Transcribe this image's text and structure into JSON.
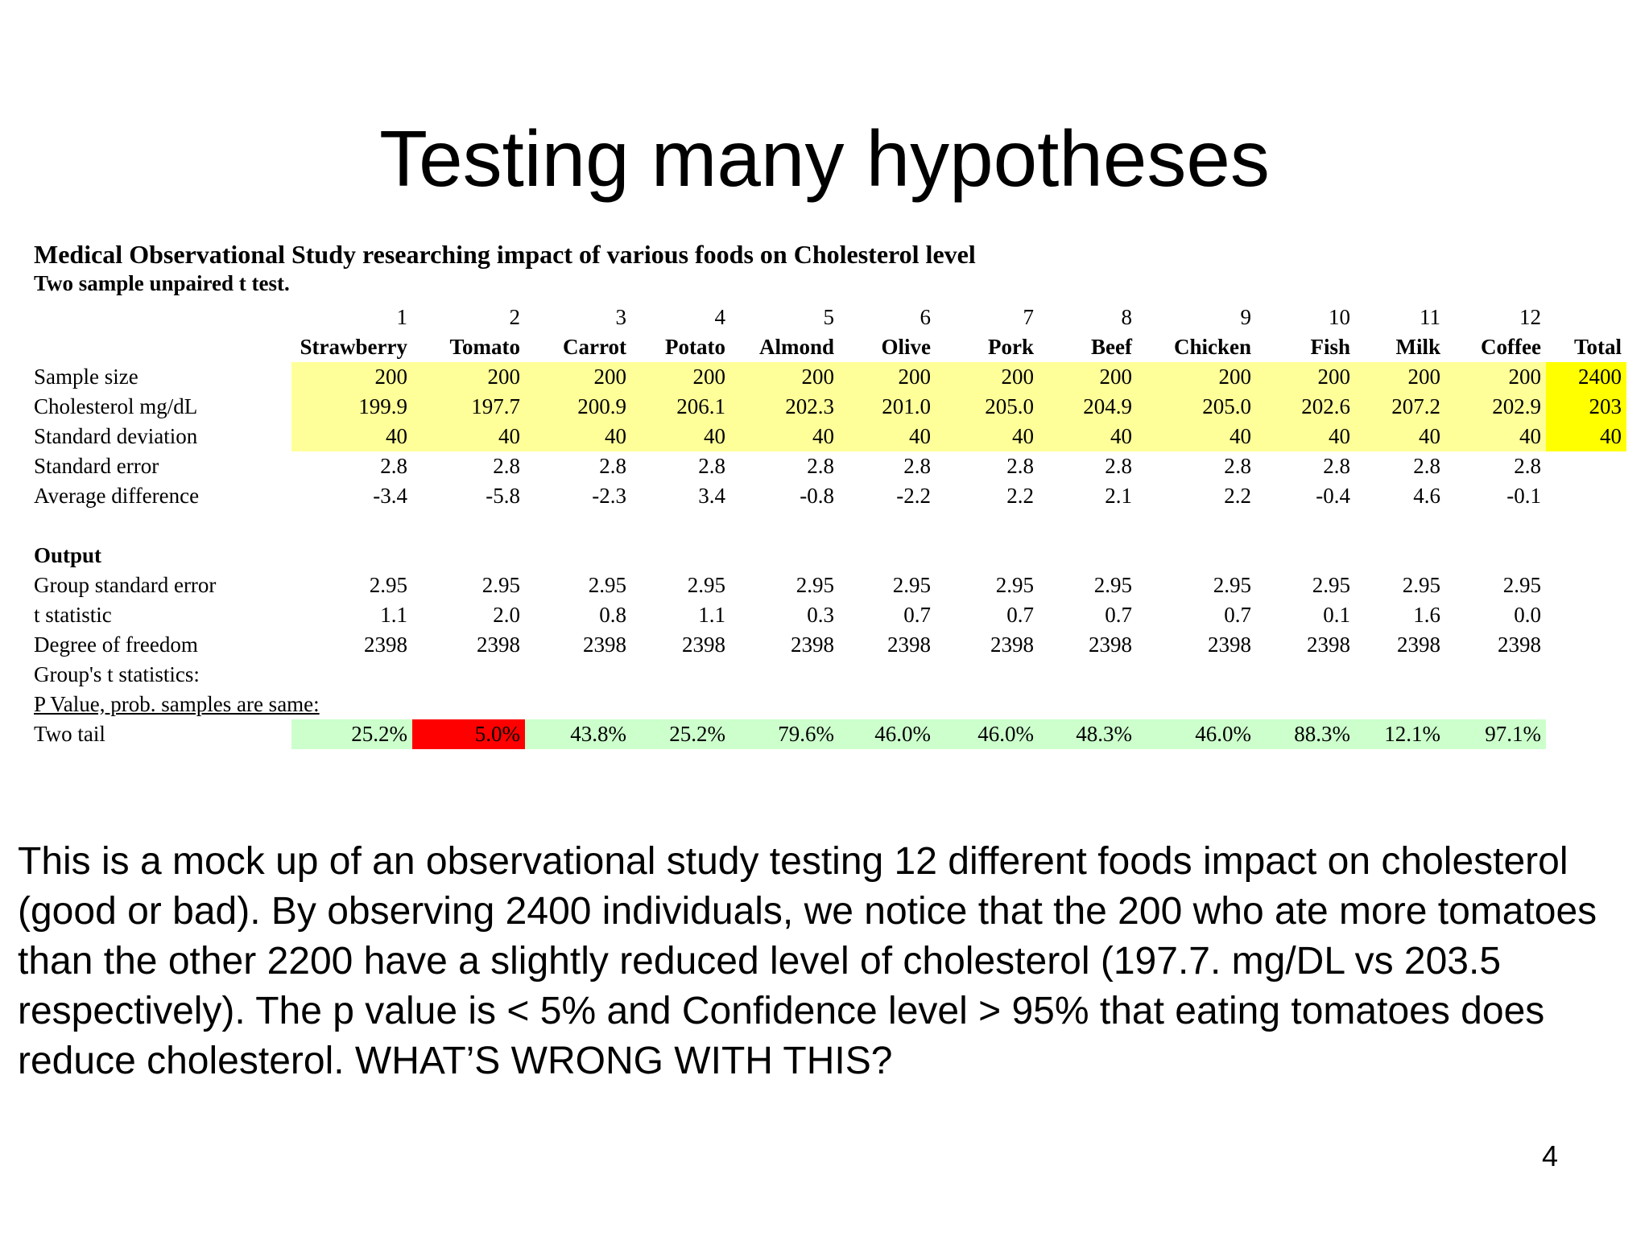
{
  "slide": {
    "title": "Testing many hypotheses",
    "page_number": "4",
    "description": "This is a mock up of an observational study testing 12 different foods impact on cholesterol (good or bad).  By observing 2400 individuals, we notice that the 200 who ate more tomatoes than the other 2200 have a slightly reduced level of cholesterol (197.7. mg/DL vs 203.5 respectively).  The p value is < 5% and Confidence level > 95% that eating tomatoes does reduce cholesterol.  WHAT’S WRONG WITH THIS?"
  },
  "study": {
    "title": "Medical Observational Study researching impact of various foods on Cholesterol level",
    "subtitle": "Two sample unpaired t test.",
    "group_numbers": [
      "1",
      "2",
      "3",
      "4",
      "5",
      "6",
      "7",
      "8",
      "9",
      "10",
      "11",
      "12"
    ],
    "foods": [
      "Strawberry",
      "Tomato",
      "Carrot",
      "Potato",
      "Almond",
      "Olive",
      "Pork",
      "Beef",
      "Chicken",
      "Fish",
      "Milk",
      "Coffee"
    ],
    "total_label": "Total",
    "rows": [
      {
        "label": "Sample size",
        "values": [
          "200",
          "200",
          "200",
          "200",
          "200",
          "200",
          "200",
          "200",
          "200",
          "200",
          "200",
          "200"
        ],
        "total": "2400"
      },
      {
        "label": "Cholesterol mg/dL",
        "values": [
          "199.9",
          "197.7",
          "200.9",
          "206.1",
          "202.3",
          "201.0",
          "205.0",
          "204.9",
          "205.0",
          "202.6",
          "207.2",
          "202.9"
        ],
        "total": "203"
      },
      {
        "label": "Standard deviation",
        "values": [
          "40",
          "40",
          "40",
          "40",
          "40",
          "40",
          "40",
          "40",
          "40",
          "40",
          "40",
          "40"
        ],
        "total": "40"
      },
      {
        "label": "Standard error",
        "values": [
          "2.8",
          "2.8",
          "2.8",
          "2.8",
          "2.8",
          "2.8",
          "2.8",
          "2.8",
          "2.8",
          "2.8",
          "2.8",
          "2.8"
        ]
      },
      {
        "label": "Average difference",
        "values": [
          "-3.4",
          "-5.8",
          "-2.3",
          "3.4",
          "-0.8",
          "-2.2",
          "2.2",
          "2.1",
          "2.2",
          "-0.4",
          "4.6",
          "-0.1"
        ]
      }
    ],
    "output_label": "Output",
    "output_rows": [
      {
        "label": "Group standard error",
        "values": [
          "2.95",
          "2.95",
          "2.95",
          "2.95",
          "2.95",
          "2.95",
          "2.95",
          "2.95",
          "2.95",
          "2.95",
          "2.95",
          "2.95"
        ]
      },
      {
        "label": "t statistic",
        "values": [
          "1.1",
          "2.0",
          "0.8",
          "1.1",
          "0.3",
          "0.7",
          "0.7",
          "0.7",
          "0.7",
          "0.1",
          "1.6",
          "0.0"
        ]
      },
      {
        "label": "Degree of freedom",
        "values": [
          "2398",
          "2398",
          "2398",
          "2398",
          "2398",
          "2398",
          "2398",
          "2398",
          "2398",
          "2398",
          "2398",
          "2398"
        ]
      }
    ],
    "group_t_label": "Group's t statistics:",
    "p_value_label": "P Value, prob. samples are same:",
    "two_tail": {
      "label": "Two tail",
      "values": [
        "25.2%",
        "5.0%",
        "43.8%",
        "25.2%",
        "79.6%",
        "46.0%",
        "46.0%",
        "48.3%",
        "46.0%",
        "88.3%",
        "12.1%",
        "97.1%"
      ]
    },
    "colors": {
      "input_fill": "#ffff99",
      "total_fill": "#ffff00",
      "p_fill": "#ccffcc",
      "significant_fill": "#ff0000"
    }
  }
}
